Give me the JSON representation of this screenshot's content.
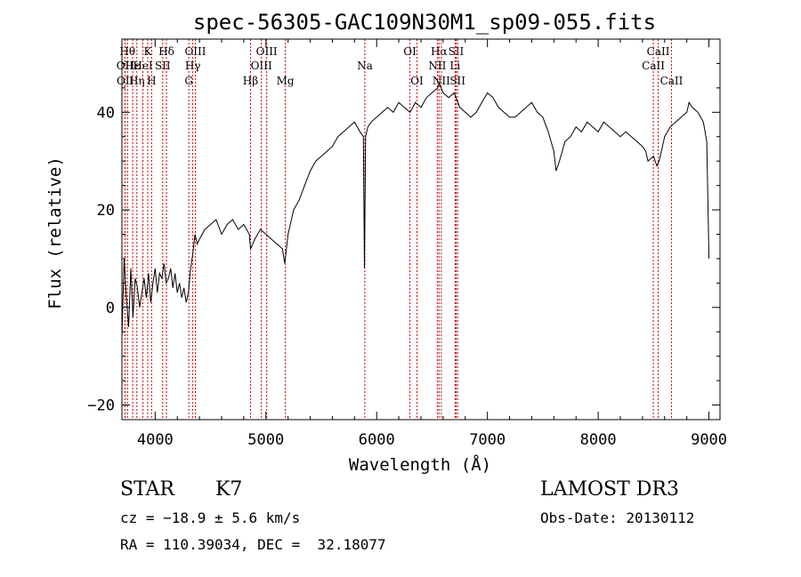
{
  "chart_data": {
    "type": "line",
    "title": "spec-56305-GAC109N30M1_sp09-055.fits",
    "xlabel": "Wavelength (Å)",
    "ylabel": "Flux (relative)",
    "xlim": [
      3700,
      9100
    ],
    "ylim": [
      -23,
      55
    ],
    "x_ticks": [
      4000,
      5000,
      6000,
      7000,
      8000,
      9000
    ],
    "y_ticks": [
      -20,
      0,
      20,
      40
    ],
    "grid": false,
    "line_color": "#000000",
    "marker_color": "#cc0000",
    "series": [
      {
        "x": [
          3700,
          3720,
          3740,
          3760,
          3780,
          3800,
          3820,
          3840,
          3860,
          3880,
          3900,
          3920,
          3940,
          3960,
          3980,
          4000,
          4020,
          4040,
          4060,
          4080,
          4100,
          4120,
          4140,
          4160,
          4180,
          4200,
          4220,
          4240,
          4260,
          4280,
          4300,
          4320,
          4340,
          4360,
          4380,
          4400,
          4450,
          4500,
          4550,
          4600,
          4650,
          4700,
          4750,
          4800,
          4850,
          4861,
          4900,
          4950,
          5000,
          5050,
          5100,
          5150,
          5170,
          5200,
          5250,
          5300,
          5350,
          5400,
          5450,
          5500,
          5550,
          5600,
          5650,
          5700,
          5750,
          5800,
          5850,
          5880,
          5890,
          5900,
          5920,
          5950,
          6000,
          6050,
          6100,
          6150,
          6200,
          6250,
          6300,
          6350,
          6400,
          6450,
          6500,
          6550,
          6563,
          6600,
          6650,
          6700,
          6750,
          6800,
          6850,
          6900,
          6950,
          7000,
          7050,
          7100,
          7150,
          7200,
          7250,
          7300,
          7350,
          7400,
          7450,
          7500,
          7550,
          7600,
          7620,
          7650,
          7700,
          7750,
          7800,
          7850,
          7900,
          7950,
          8000,
          8050,
          8100,
          8150,
          8200,
          8250,
          8300,
          8350,
          8400,
          8430,
          8450,
          8500,
          8530,
          8550,
          8600,
          8650,
          8700,
          8750,
          8800,
          8820,
          8850,
          8900,
          8950,
          8980,
          9000
        ],
        "y": [
          -6,
          10,
          2,
          -4,
          8,
          -2,
          6,
          4,
          0,
          3,
          6,
          2,
          7,
          1,
          5,
          8,
          3,
          7,
          6,
          9,
          5,
          6,
          8,
          4,
          7,
          3,
          5,
          2,
          4,
          1,
          3,
          8,
          11,
          15,
          13,
          14,
          16,
          17,
          18,
          15,
          17,
          18,
          16,
          17,
          15,
          12,
          14,
          16,
          15,
          14,
          13,
          12,
          9,
          15,
          20,
          22,
          25,
          28,
          30,
          31,
          32,
          33,
          35,
          36,
          37,
          38,
          36,
          35,
          8,
          35,
          37,
          38,
          39,
          40,
          41,
          40,
          42,
          41,
          40,
          42,
          41,
          43,
          44,
          45,
          46,
          44,
          43,
          44,
          41,
          40,
          39,
          40,
          42,
          44,
          43,
          41,
          40,
          39,
          39,
          40,
          41,
          42,
          40,
          39,
          36,
          32,
          28,
          30,
          34,
          35,
          37,
          36,
          38,
          37,
          36,
          38,
          37,
          36,
          35,
          36,
          35,
          34,
          33,
          32,
          30,
          31,
          29,
          30,
          35,
          37,
          38,
          39,
          40,
          42,
          41,
          40,
          38,
          34,
          10
        ]
      }
    ],
    "markers": [
      {
        "label": "Hθ",
        "x": 3750,
        "row": 1
      },
      {
        "label": "OII",
        "x": 3727,
        "row": 2
      },
      {
        "label": "OII",
        "x": 3729,
        "row": 3
      },
      {
        "label": "Hε",
        "x": 3797,
        "row": 2
      },
      {
        "label": "Hη",
        "x": 3835,
        "row": 3
      },
      {
        "label": "K",
        "x": 3933,
        "row": 1
      },
      {
        "label": "HeI",
        "x": 3889,
        "row": 2
      },
      {
        "label": "H",
        "x": 3968,
        "row": 3
      },
      {
        "label": "SII",
        "x": 4068,
        "row": 2
      },
      {
        "label": "Hδ",
        "x": 4102,
        "row": 1
      },
      {
        "label": "OIII",
        "x": 4363,
        "row": 1
      },
      {
        "label": "Hγ",
        "x": 4340,
        "row": 2
      },
      {
        "label": "G",
        "x": 4304,
        "row": 3
      },
      {
        "label": "Hβ",
        "x": 4861,
        "row": 3
      },
      {
        "label": "OIII",
        "x": 5007,
        "row": 1
      },
      {
        "label": "OIII",
        "x": 4959,
        "row": 2
      },
      {
        "label": "Mg",
        "x": 5175,
        "row": 3
      },
      {
        "label": "Na",
        "x": 5893,
        "row": 2
      },
      {
        "label": "OI",
        "x": 6300,
        "row": 1
      },
      {
        "label": "OI",
        "x": 6364,
        "row": 3
      },
      {
        "label": "Hα",
        "x": 6563,
        "row": 1
      },
      {
        "label": "NII",
        "x": 6548,
        "row": 2
      },
      {
        "label": "NII",
        "x": 6584,
        "row": 3
      },
      {
        "label": "SII",
        "x": 6717,
        "row": 1
      },
      {
        "label": "Li",
        "x": 6708,
        "row": 2
      },
      {
        "label": "SII",
        "x": 6731,
        "row": 3
      },
      {
        "label": "CaII",
        "x": 8542,
        "row": 1
      },
      {
        "label": "CaII",
        "x": 8498,
        "row": 2
      },
      {
        "label": "CaII",
        "x": 8662,
        "row": 3
      }
    ]
  },
  "info": {
    "class_label": "STAR",
    "subclass_label": "K7",
    "survey_label": "LAMOST DR3",
    "redshift_line": "cz = −18.9 ± 5.6 km/s",
    "obs_date_line": "Obs-Date: 20130112",
    "coords_line": "RA = 110.39034, DEC =  32.18077"
  }
}
